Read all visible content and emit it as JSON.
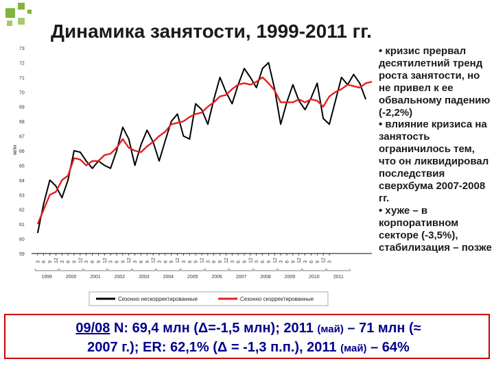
{
  "slide": {
    "title": "Динамика занятости, 1999-2011 гг.",
    "bullets": [
      "• кризис прервал десятилетний тренд роста занятости, но не привел к ее обвальному падению (-2,2%)",
      "• влияние кризиса на занятость ограничилось тем, что он ликвидировал последствия сверхбума 2007-2008 гг.",
      "• хуже – в корпоративном секторе (-3,5%), стабилизация – позже"
    ],
    "footer": {
      "date": "09/08",
      "part1": " N: 69,4 млн (Δ=-1,5 млн); 2011 ",
      "may1": "(май)",
      "part2": " – 71 млн (≈",
      "part3": "2007 г.); ER: 62,1% (Δ = -1,3 п.п.), 2011 ",
      "may2": "(май)",
      "part4": " – 64%"
    },
    "colors": {
      "accent_green": "#7fb43a",
      "footer_text": "#00008b",
      "footer_border": "#cc0000"
    }
  },
  "chart_data": {
    "type": "line",
    "ylabel": "млн",
    "ylim": [
      59,
      73
    ],
    "yticks": [
      59,
      60,
      61,
      62,
      63,
      64,
      65,
      66,
      67,
      68,
      69,
      70,
      71,
      72,
      73
    ],
    "month_ticks": [
      "3",
      "6",
      "9",
      "12",
      "3",
      "6",
      "9",
      "12",
      "3",
      "6",
      "9",
      "12",
      "3",
      "6",
      "9",
      "12",
      "3",
      "6",
      "9",
      "12",
      "3",
      "6",
      "9",
      "12",
      "3",
      "6",
      "9",
      "12",
      "3",
      "6",
      "9",
      "12",
      "3",
      "6",
      "9",
      "12",
      "3",
      "6",
      "9",
      "12",
      "3",
      "6",
      "9",
      "12",
      "3",
      "6",
      "9",
      "12",
      "3"
    ],
    "years": [
      "1999",
      "2000",
      "2001",
      "2002",
      "2003",
      "2004",
      "2005",
      "2006",
      "2007",
      "2008",
      "2009",
      "2010",
      "2011"
    ],
    "legend_position": "bottom",
    "series": [
      {
        "name": "Сезонно нескорректированные",
        "color": "#000000",
        "points": [
          [
            1999.0,
            60.4
          ],
          [
            1999.25,
            62.4
          ],
          [
            1999.5,
            64.0
          ],
          [
            1999.75,
            63.6
          ],
          [
            2000.0,
            62.8
          ],
          [
            2000.25,
            64.0
          ],
          [
            2000.5,
            66.0
          ],
          [
            2000.75,
            65.9
          ],
          [
            2001.0,
            65.3
          ],
          [
            2001.25,
            64.8
          ],
          [
            2001.5,
            65.3
          ],
          [
            2001.75,
            65.0
          ],
          [
            2002.0,
            64.8
          ],
          [
            2002.25,
            66.0
          ],
          [
            2002.5,
            67.6
          ],
          [
            2002.75,
            66.8
          ],
          [
            2003.0,
            65.0
          ],
          [
            2003.25,
            66.4
          ],
          [
            2003.5,
            67.4
          ],
          [
            2003.75,
            66.6
          ],
          [
            2004.0,
            65.3
          ],
          [
            2004.25,
            66.7
          ],
          [
            2004.5,
            68.0
          ],
          [
            2004.75,
            68.5
          ],
          [
            2005.0,
            67.0
          ],
          [
            2005.25,
            66.8
          ],
          [
            2005.5,
            69.2
          ],
          [
            2005.75,
            68.8
          ],
          [
            2006.0,
            67.8
          ],
          [
            2006.25,
            69.5
          ],
          [
            2006.5,
            71.0
          ],
          [
            2006.75,
            70.0
          ],
          [
            2007.0,
            69.2
          ],
          [
            2007.25,
            70.5
          ],
          [
            2007.5,
            71.6
          ],
          [
            2007.75,
            71.0
          ],
          [
            2008.0,
            70.3
          ],
          [
            2008.25,
            71.6
          ],
          [
            2008.5,
            72.0
          ],
          [
            2008.75,
            70.2
          ],
          [
            2009.0,
            67.8
          ],
          [
            2009.25,
            69.3
          ],
          [
            2009.5,
            70.5
          ],
          [
            2009.75,
            69.4
          ],
          [
            2010.0,
            68.8
          ],
          [
            2010.25,
            69.6
          ],
          [
            2010.5,
            70.6
          ],
          [
            2010.75,
            68.2
          ],
          [
            2011.0,
            67.8
          ],
          [
            2011.25,
            69.4
          ],
          [
            2011.5,
            71.0
          ],
          [
            2011.75,
            70.5
          ],
          [
            2012.0,
            71.2
          ],
          [
            2012.25,
            70.6
          ],
          [
            2012.5,
            69.5
          ]
        ]
      },
      {
        "name": "Сезонно скорректированные",
        "color": "#e41e20",
        "points": [
          [
            1999.0,
            61.0
          ],
          [
            1999.25,
            62.0
          ],
          [
            1999.5,
            63.0
          ],
          [
            1999.75,
            63.2
          ],
          [
            2000.0,
            64.0
          ],
          [
            2000.25,
            64.3
          ],
          [
            2000.5,
            65.5
          ],
          [
            2000.75,
            65.4
          ],
          [
            2001.0,
            65.0
          ],
          [
            2001.25,
            65.3
          ],
          [
            2001.5,
            65.3
          ],
          [
            2001.75,
            65.7
          ],
          [
            2002.0,
            65.8
          ],
          [
            2002.25,
            66.2
          ],
          [
            2002.5,
            66.8
          ],
          [
            2002.75,
            66.2
          ],
          [
            2003.0,
            66.0
          ],
          [
            2003.25,
            65.9
          ],
          [
            2003.5,
            66.3
          ],
          [
            2003.75,
            66.6
          ],
          [
            2004.0,
            67.0
          ],
          [
            2004.25,
            67.3
          ],
          [
            2004.5,
            67.8
          ],
          [
            2004.75,
            67.9
          ],
          [
            2005.0,
            68.0
          ],
          [
            2005.25,
            68.3
          ],
          [
            2005.5,
            68.5
          ],
          [
            2005.75,
            68.6
          ],
          [
            2006.0,
            69.0
          ],
          [
            2006.25,
            69.3
          ],
          [
            2006.5,
            69.7
          ],
          [
            2006.75,
            69.8
          ],
          [
            2007.0,
            70.2
          ],
          [
            2007.25,
            70.5
          ],
          [
            2007.5,
            70.6
          ],
          [
            2007.75,
            70.5
          ],
          [
            2008.0,
            70.7
          ],
          [
            2008.25,
            71.0
          ],
          [
            2008.5,
            70.6
          ],
          [
            2008.75,
            70.1
          ],
          [
            2009.0,
            69.3
          ],
          [
            2009.25,
            69.3
          ],
          [
            2009.5,
            69.3
          ],
          [
            2009.75,
            69.5
          ],
          [
            2010.0,
            69.3
          ],
          [
            2010.25,
            69.5
          ],
          [
            2010.5,
            69.4
          ],
          [
            2010.75,
            69.0
          ],
          [
            2011.0,
            69.7
          ],
          [
            2011.25,
            70.0
          ],
          [
            2011.5,
            70.2
          ],
          [
            2011.75,
            70.5
          ],
          [
            2012.0,
            70.4
          ],
          [
            2012.25,
            70.3
          ],
          [
            2012.5,
            70.6
          ],
          [
            2012.75,
            70.7
          ]
        ]
      }
    ]
  }
}
